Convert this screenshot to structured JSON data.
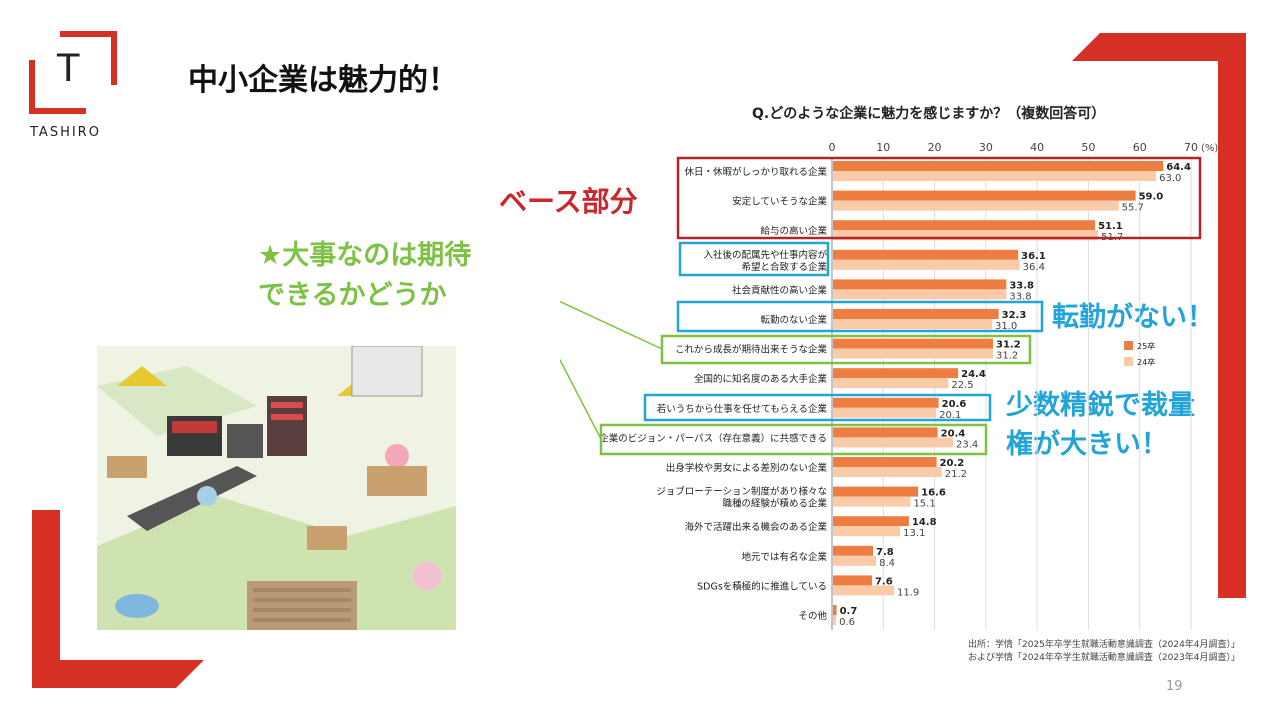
{
  "slide": {
    "title": "中小企業は魅力的！",
    "logo_text": "TASHIRO",
    "logo_letter": "T",
    "page_number": "19",
    "accent_color": "#d63025"
  },
  "callouts": {
    "base": "ベース部分",
    "expectation_line1": "★大事なのは期待",
    "expectation_line2": "できるかどうか",
    "no_transfer": "転勤がない！",
    "elite_line1": "少数精鋭で裁量",
    "elite_line2": "権が大きい！"
  },
  "source": {
    "line1": "出所：学情「2025年卒学生就職活動意識調査（2024年4月調査）」",
    "line2": "および学情「2024年卒学生就職活動意識調査（2023年4月調査）」"
  },
  "chart_data": {
    "type": "bar",
    "orientation": "horizontal",
    "title": "Q.どのような企業に魅力を感じますか？（複数回答可）",
    "unit_label": "(%)",
    "xlim": [
      0,
      70
    ],
    "ticks": [
      "0",
      "10",
      "20",
      "30",
      "40",
      "50",
      "60",
      "70"
    ],
    "categories": [
      [
        "休日・休暇がしっかり取れる企業"
      ],
      [
        "安定していそうな企業"
      ],
      [
        "給与の高い企業"
      ],
      [
        "入社後の配属先や仕事内容が",
        "希望と合致する企業"
      ],
      [
        "社会貢献性の高い企業"
      ],
      [
        "転勤のない企業"
      ],
      [
        "これから成長が期待出来そうな企業"
      ],
      [
        "全国的に知名度のある大手企業"
      ],
      [
        "若いうちから仕事を任せてもらえる企業"
      ],
      [
        "企業のビジョン・パーパス（存在意義）に共感できる"
      ],
      [
        "出身学校や男女による差別のない企業"
      ],
      [
        "ジョブローテーション制度があり様々な",
        "職種の経験が積める企業"
      ],
      [
        "海外で活躍出来る機会のある企業"
      ],
      [
        "地元では有名な企業"
      ],
      [
        "SDGsを積極的に推進している"
      ],
      [
        "その他"
      ]
    ],
    "series": [
      {
        "name": "25卒",
        "color": "#ee7d41",
        "values": [
          64.4,
          59.0,
          51.1,
          36.1,
          33.8,
          32.3,
          31.2,
          24.4,
          20.6,
          20.4,
          20.2,
          16.6,
          14.8,
          7.8,
          7.6,
          0.7
        ]
      },
      {
        "name": "24卒",
        "color": "#f9cba9",
        "values": [
          63.0,
          55.7,
          51.7,
          36.4,
          33.8,
          31.0,
          31.2,
          22.5,
          20.1,
          23.4,
          21.2,
          15.1,
          13.1,
          8.4,
          11.9,
          0.6
        ]
      }
    ],
    "value_labels_25": [
      "64.4",
      "59.0",
      "51.1",
      "36.1",
      "33.8",
      "32.3",
      "31.2",
      "24.4",
      "20.6",
      "20.4",
      "20.2",
      "16.6",
      "14.8",
      "7.8",
      "7.6",
      "0.7"
    ],
    "value_labels_24": [
      "63.0",
      "55.7",
      "51.7",
      "36.4",
      "33.8",
      "31.0",
      "31.2",
      "22.5",
      "20.1",
      "23.4",
      "21.2",
      "15.1",
      "13.1",
      "8.4",
      "11.9",
      "0.6"
    ],
    "legend_position": "right"
  }
}
